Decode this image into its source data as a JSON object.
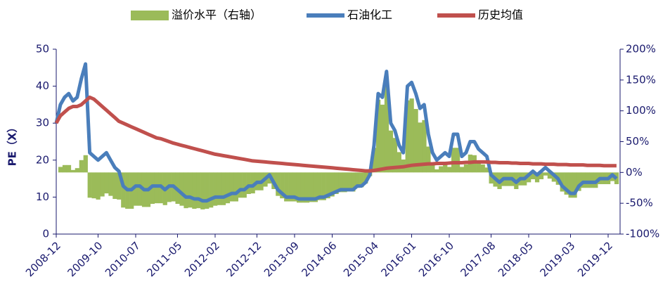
{
  "chart_data": {
    "type": "line",
    "categories": [
      "2008-12",
      null,
      null,
      null,
      null,
      null,
      null,
      null,
      null,
      null,
      "2009-10",
      null,
      null,
      null,
      null,
      null,
      null,
      null,
      null,
      "2010-07",
      null,
      null,
      null,
      null,
      null,
      null,
      null,
      null,
      null,
      "2011-05",
      null,
      null,
      null,
      null,
      null,
      null,
      null,
      null,
      "2012-02",
      null,
      null,
      null,
      null,
      null,
      null,
      null,
      null,
      null,
      "2012-12",
      null,
      null,
      null,
      null,
      null,
      null,
      null,
      null,
      "2013-09",
      null,
      null,
      null,
      null,
      null,
      null,
      null,
      null,
      "2014-06",
      null,
      null,
      null,
      null,
      null,
      null,
      null,
      null,
      null,
      "2015-04",
      null,
      null,
      null,
      null,
      null,
      null,
      null,
      null,
      "2016-01",
      null,
      null,
      null,
      null,
      null,
      null,
      null,
      null,
      "2016-10",
      null,
      null,
      null,
      null,
      null,
      null,
      null,
      null,
      null,
      "2017-08",
      null,
      null,
      null,
      null,
      null,
      null,
      null,
      null,
      "2018-05",
      null,
      null,
      null,
      null,
      null,
      null,
      null,
      null,
      null,
      "2019-03",
      null,
      null,
      null,
      null,
      null,
      null,
      null,
      null,
      "2019-12",
      null,
      null
    ],
    "series": [
      {
        "name": "溢价水平（右轴）",
        "type": "bar",
        "axis": "y2",
        "color": "#9bbb59",
        "values": [
          0,
          9,
          12,
          12,
          4,
          7,
          20,
          28,
          -41,
          -42,
          -44,
          -39,
          -34,
          -38,
          -43,
          -44,
          -57,
          -59,
          -59,
          -54,
          -54,
          -56,
          -56,
          -51,
          -50,
          -50,
          -53,
          -48,
          -47,
          -51,
          -54,
          -58,
          -57,
          -59,
          -58,
          -60,
          -59,
          -57,
          -54,
          -53,
          -53,
          -50,
          -47,
          -47,
          -41,
          -41,
          -35,
          -34,
          -29,
          -29,
          -23,
          -18,
          -27,
          -38,
          -42,
          -47,
          -47,
          -47,
          -49,
          -49,
          -49,
          -48,
          -48,
          -45,
          -45,
          -42,
          -39,
          -35,
          -32,
          -32,
          -31,
          -31,
          -25,
          -24,
          -18,
          -6,
          40,
          118,
          110,
          147,
          68,
          56,
          33,
          21,
          117,
          120,
          103,
          81,
          85,
          42,
          16,
          5,
          10,
          15,
          9,
          40,
          40,
          9,
          13,
          29,
          28,
          18,
          13,
          8,
          -18,
          -23,
          -27,
          -22,
          -22,
          -22,
          -27,
          -21,
          -21,
          -16,
          -11,
          -16,
          -11,
          -5,
          -10,
          -15,
          -20,
          -31,
          -36,
          -41,
          -41,
          -30,
          -25,
          -25,
          -25,
          -25,
          -19,
          -19,
          -19,
          -14,
          -19
        ]
      },
      {
        "name": "石油化工",
        "type": "line",
        "color": "#4a7ebb",
        "values": [
          30,
          35,
          37,
          38,
          36,
          37,
          42,
          46,
          22,
          21,
          20,
          21,
          22,
          20,
          18,
          17,
          13,
          12,
          12,
          13,
          13,
          12,
          12,
          13,
          13,
          13,
          12,
          13,
          13,
          12,
          11,
          10,
          10,
          9.5,
          9.5,
          9,
          9,
          9.5,
          10,
          10,
          10,
          10.5,
          11,
          11,
          12,
          12,
          13,
          13,
          14,
          14,
          15,
          16,
          14,
          12,
          11,
          10,
          10,
          10,
          9.5,
          9.5,
          9.5,
          9.5,
          9.5,
          10,
          10,
          10.5,
          11,
          11.5,
          12,
          12,
          12,
          12,
          13,
          13,
          14,
          16,
          24,
          38,
          37,
          44,
          30,
          28,
          24,
          22,
          40,
          41,
          38,
          34,
          35,
          27,
          22,
          20,
          21,
          22,
          21,
          27,
          27,
          21,
          22,
          25,
          25,
          23,
          22,
          21,
          16,
          15,
          14,
          15,
          15,
          15,
          14,
          15,
          15,
          16,
          17,
          16,
          17,
          18,
          17,
          16,
          15,
          13,
          12,
          11,
          11,
          13,
          14,
          14,
          14,
          14,
          15,
          15,
          15,
          16,
          15
        ]
      },
      {
        "name": "历史均值",
        "type": "line",
        "color": "#c0504d",
        "values": [
          30,
          32,
          33,
          34,
          34.5,
          34.5,
          35,
          36,
          37,
          36.5,
          35.5,
          34.5,
          33.5,
          32.5,
          31.5,
          30.5,
          30,
          29.5,
          29,
          28.5,
          28,
          27.5,
          27,
          26.5,
          26,
          25.8,
          25.4,
          25,
          24.6,
          24.3,
          24,
          23.7,
          23.4,
          23.1,
          22.8,
          22.5,
          22.2,
          21.9,
          21.6,
          21.4,
          21.2,
          21,
          20.8,
          20.6,
          20.4,
          20.2,
          20,
          19.8,
          19.7,
          19.6,
          19.5,
          19.4,
          19.3,
          19.2,
          19.1,
          19,
          18.9,
          18.8,
          18.7,
          18.6,
          18.5,
          18.4,
          18.3,
          18.2,
          18.1,
          18,
          17.9,
          17.8,
          17.7,
          17.6,
          17.5,
          17.4,
          17.3,
          17.2,
          17.1,
          17.1,
          17.2,
          17.4,
          17.6,
          17.8,
          17.9,
          18,
          18.1,
          18.2,
          18.4,
          18.6,
          18.7,
          18.8,
          18.9,
          19,
          19,
          19.1,
          19.1,
          19.1,
          19.2,
          19.3,
          19.3,
          19.3,
          19.4,
          19.4,
          19.5,
          19.5,
          19.5,
          19.5,
          19.4,
          19.4,
          19.3,
          19.3,
          19.3,
          19.2,
          19.2,
          19.1,
          19.1,
          19.1,
          19,
          19,
          19,
          18.9,
          18.9,
          18.9,
          18.8,
          18.8,
          18.8,
          18.7,
          18.7,
          18.7,
          18.7,
          18.6,
          18.6,
          18.6,
          18.6,
          18.5,
          18.5,
          18.5,
          18.5
        ]
      }
    ],
    "y_label": "PE（X）",
    "ylim": [
      0,
      50
    ],
    "yticks": [
      0,
      10,
      20,
      30,
      40,
      50
    ],
    "y2lim": [
      -100,
      200
    ],
    "y2ticks": [
      {
        "value": -100,
        "label": "-100%"
      },
      {
        "value": -50,
        "label": "-50%"
      },
      {
        "value": 0,
        "label": "0%"
      },
      {
        "value": 50,
        "label": "50%"
      },
      {
        "value": 100,
        "label": "100%"
      },
      {
        "value": 150,
        "label": "150%"
      },
      {
        "value": 200,
        "label": "200%"
      }
    ],
    "legend": "top"
  }
}
